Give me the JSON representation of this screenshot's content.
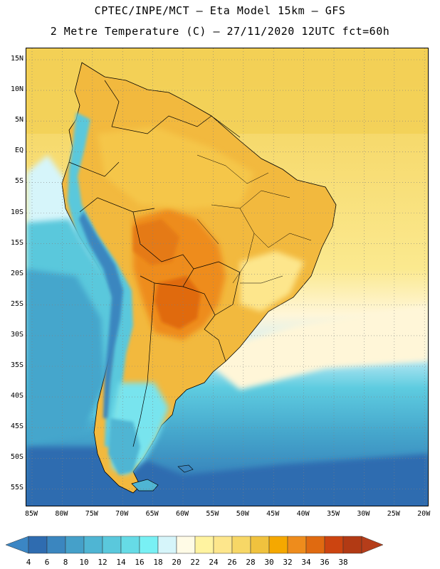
{
  "header": {
    "line1": "CPTEC/INPE/MCT –  Eta Model 15km – GFS",
    "line2": "2 Metre Temperature (C) – 27/11/2020 12UTC fct=60h"
  },
  "map": {
    "lat_labels": [
      "15N",
      "10N",
      "5N",
      "EQ",
      "5S",
      "10S",
      "15S",
      "20S",
      "25S",
      "30S",
      "35S",
      "40S",
      "45S",
      "50S",
      "55S"
    ],
    "lon_labels": [
      "85W",
      "80W",
      "75W",
      "70W",
      "65W",
      "60W",
      "55W",
      "50W",
      "45W",
      "40W",
      "35W",
      "30W",
      "25W",
      "20W"
    ]
  },
  "colorbar": {
    "levels": [
      "4",
      "6",
      "8",
      "10",
      "12",
      "14",
      "16",
      "18",
      "20",
      "22",
      "24",
      "26",
      "28",
      "30",
      "32",
      "34",
      "36",
      "38"
    ],
    "colors": [
      "#2f6cb0",
      "#3b86bf",
      "#45a0c9",
      "#4fb5d3",
      "#5ac8dc",
      "#66dbe6",
      "#78f0f4",
      "#d6f5fa",
      "#fffbe6",
      "#fff3a0",
      "#fde68c",
      "#f7d766",
      "#f0c23e",
      "#f5a800",
      "#ee8c1c",
      "#e06a10",
      "#cc4410",
      "#b23a14"
    ],
    "left_arrow_color": "#3b86c4",
    "right_arrow_color": "#b53d1a"
  }
}
